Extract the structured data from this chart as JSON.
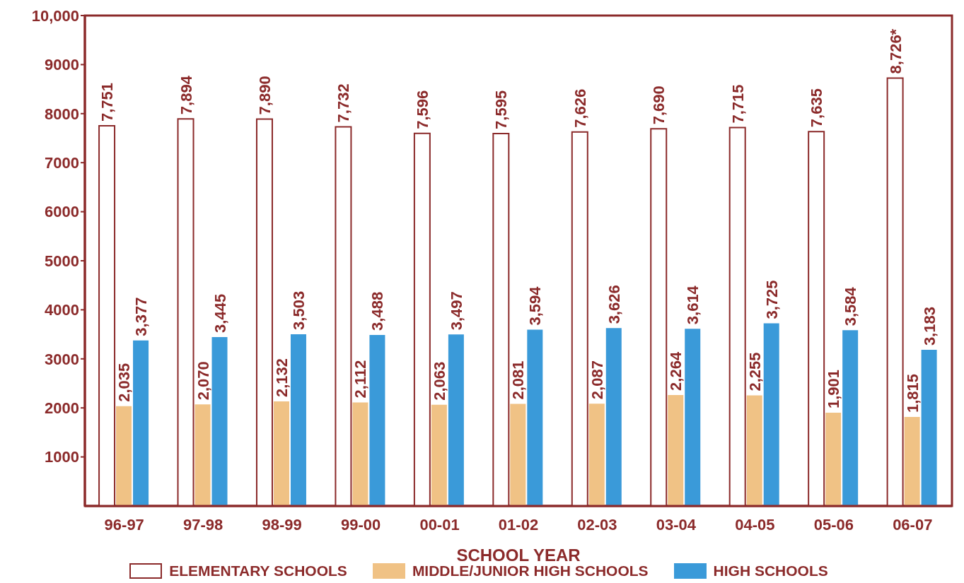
{
  "chart_data": {
    "type": "bar",
    "xlabel": "SCHOOL YEAR",
    "categories": [
      "96-97",
      "97-98",
      "98-99",
      "99-00",
      "00-01",
      "01-02",
      "02-03",
      "03-04",
      "04-05",
      "05-06",
      "06-07"
    ],
    "series": [
      {
        "name": "ELEMENTARY SCHOOLS",
        "color": "#ffffff",
        "values": [
          7751,
          7894,
          7890,
          7732,
          7596,
          7595,
          7626,
          7690,
          7715,
          7635,
          8726
        ],
        "value_labels": [
          "7,751",
          "7,894",
          "7,890",
          "7,732",
          "7,596",
          "7,595",
          "7,626",
          "7,690",
          "7,715",
          "7,635",
          "8,726*"
        ]
      },
      {
        "name": "MIDDLE/JUNIOR HIGH SCHOOLS",
        "color": "#f0c285",
        "values": [
          2035,
          2070,
          2132,
          2112,
          2063,
          2081,
          2087,
          2264,
          2255,
          1901,
          1815
        ],
        "value_labels": [
          "2,035",
          "2,070",
          "2,132",
          "2,112",
          "2,063",
          "2,081",
          "2,087",
          "2,264",
          "2,255",
          "1,901",
          "1,815"
        ]
      },
      {
        "name": "HIGH SCHOOLS",
        "color": "#3a9ad9",
        "values": [
          3377,
          3445,
          3503,
          3488,
          3497,
          3594,
          3626,
          3614,
          3725,
          3584,
          3183
        ],
        "value_labels": [
          "3,377",
          "3,445",
          "3,503",
          "3,488",
          "3,497",
          "3,594",
          "3,626",
          "3,614",
          "3,725",
          "3,584",
          "3,183"
        ]
      }
    ],
    "ylim": [
      0,
      10000
    ],
    "yticks": [
      1000,
      2000,
      3000,
      4000,
      5000,
      6000,
      7000,
      8000,
      9000,
      {
        "value": 10000,
        "label": "10,000"
      }
    ],
    "legend": "bottom"
  }
}
